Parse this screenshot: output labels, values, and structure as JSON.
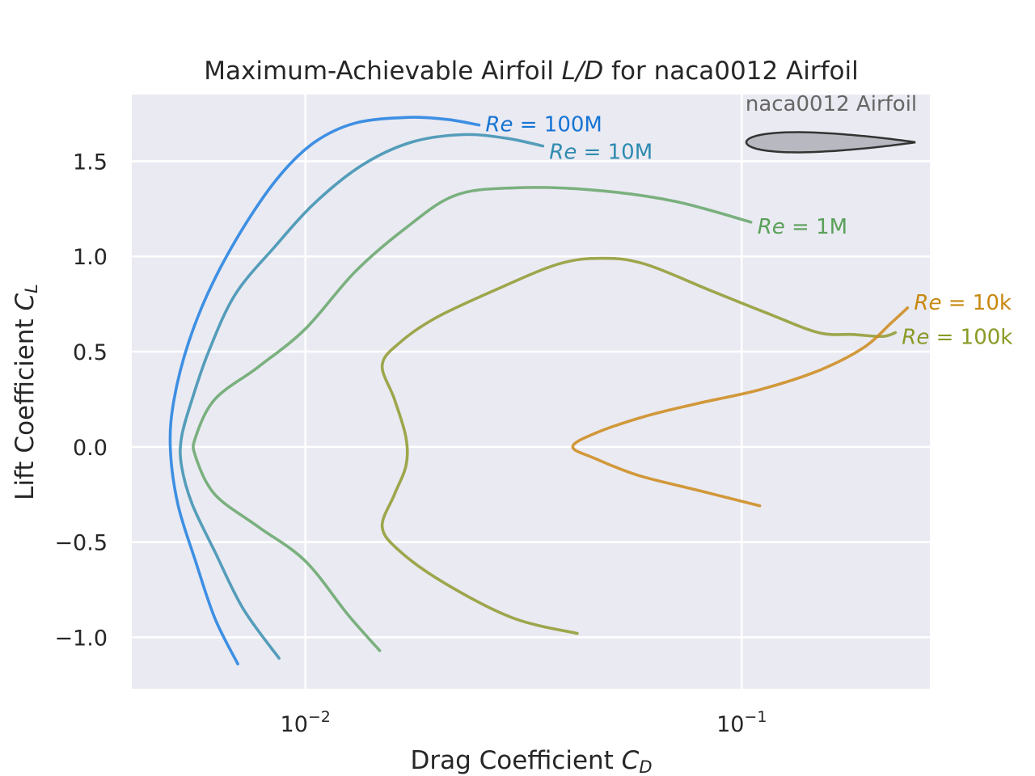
{
  "chart_data": {
    "type": "line",
    "title_parts": [
      "Maximum-Achievable Airfoil ",
      "L/D",
      " for naca0012 Airfoil"
    ],
    "xlabel_parts": [
      "Drag Coefficient ",
      "C",
      "D"
    ],
    "ylabel_parts": [
      "Lift Coefficient ",
      "C",
      "L"
    ],
    "x_scale": "log",
    "xlim": [
      0.004,
      0.27
    ],
    "ylim": [
      -1.27,
      1.85
    ],
    "x_ticks": [
      {
        "value": 0.01,
        "base": "10",
        "exp": "−2"
      },
      {
        "value": 0.1,
        "base": "10",
        "exp": "−1"
      }
    ],
    "y_ticks": [
      {
        "value": 1.5,
        "label": "1.5"
      },
      {
        "value": 1.0,
        "label": "1.0"
      },
      {
        "value": 0.5,
        "label": "0.5"
      },
      {
        "value": 0.0,
        "label": "0.0"
      },
      {
        "value": -0.5,
        "label": "−0.5"
      },
      {
        "value": -1.0,
        "label": "−1.0"
      }
    ],
    "grid": true,
    "inset_label": "naca0012 Airfoil",
    "series": [
      {
        "name": "Re = 100M",
        "label_prefix": "Re",
        "label_value": "100M",
        "color": "#1f7fe0",
        "label_text_color": "#1674d4",
        "label_anchor": "end",
        "points": [
          [
            0.007,
            -1.14
          ],
          [
            0.0062,
            -0.9
          ],
          [
            0.0056,
            -0.6
          ],
          [
            0.0051,
            -0.3
          ],
          [
            0.0049,
            0.0
          ],
          [
            0.005,
            0.25
          ],
          [
            0.0054,
            0.55
          ],
          [
            0.0061,
            0.85
          ],
          [
            0.0072,
            1.15
          ],
          [
            0.0087,
            1.42
          ],
          [
            0.0105,
            1.6
          ],
          [
            0.013,
            1.7
          ],
          [
            0.017,
            1.73
          ],
          [
            0.021,
            1.72
          ],
          [
            0.025,
            1.69
          ]
        ]
      },
      {
        "name": "Re = 10M",
        "label_prefix": "Re",
        "label_value": "10M",
        "color": "#3a8fb0",
        "label_text_color": "#2f8bb0",
        "label_anchor": "end",
        "points": [
          [
            0.0087,
            -1.11
          ],
          [
            0.0072,
            -0.85
          ],
          [
            0.0062,
            -0.55
          ],
          [
            0.0055,
            -0.3
          ],
          [
            0.0052,
            -0.1
          ],
          [
            0.0052,
            0.05
          ],
          [
            0.0055,
            0.25
          ],
          [
            0.006,
            0.5
          ],
          [
            0.0069,
            0.8
          ],
          [
            0.0085,
            1.05
          ],
          [
            0.0105,
            1.28
          ],
          [
            0.0135,
            1.48
          ],
          [
            0.0175,
            1.6
          ],
          [
            0.023,
            1.64
          ],
          [
            0.029,
            1.62
          ],
          [
            0.035,
            1.58
          ]
        ]
      },
      {
        "name": "Re = 1M",
        "label_prefix": "Re",
        "label_value": "1M",
        "color": "#66a66a",
        "label_text_color": "#5aa05a",
        "label_anchor": "end",
        "points": [
          [
            0.0148,
            -1.07
          ],
          [
            0.0125,
            -0.88
          ],
          [
            0.01,
            -0.6
          ],
          [
            0.0078,
            -0.42
          ],
          [
            0.0062,
            -0.25
          ],
          [
            0.0056,
            -0.05
          ],
          [
            0.0056,
            0.05
          ],
          [
            0.0062,
            0.25
          ],
          [
            0.0078,
            0.42
          ],
          [
            0.01,
            0.62
          ],
          [
            0.013,
            0.92
          ],
          [
            0.017,
            1.15
          ],
          [
            0.022,
            1.32
          ],
          [
            0.03,
            1.36
          ],
          [
            0.045,
            1.35
          ],
          [
            0.07,
            1.29
          ],
          [
            0.105,
            1.18
          ]
        ]
      },
      {
        "name": "Re = 100k",
        "label_prefix": "Re",
        "label_value": "100k",
        "color": "#8f9a2e",
        "label_text_color": "#8a9a25",
        "label_anchor": "end",
        "points": [
          [
            0.042,
            -0.98
          ],
          [
            0.03,
            -0.9
          ],
          [
            0.021,
            -0.72
          ],
          [
            0.0165,
            -0.55
          ],
          [
            0.015,
            -0.42
          ],
          [
            0.016,
            -0.25
          ],
          [
            0.017,
            -0.1
          ],
          [
            0.017,
            0.05
          ],
          [
            0.016,
            0.25
          ],
          [
            0.015,
            0.43
          ],
          [
            0.0165,
            0.55
          ],
          [
            0.02,
            0.68
          ],
          [
            0.027,
            0.82
          ],
          [
            0.038,
            0.96
          ],
          [
            0.048,
            0.99
          ],
          [
            0.06,
            0.96
          ],
          [
            0.085,
            0.82
          ],
          [
            0.115,
            0.7
          ],
          [
            0.15,
            0.6
          ],
          [
            0.18,
            0.59
          ],
          [
            0.21,
            0.58
          ],
          [
            0.225,
            0.6
          ]
        ]
      },
      {
        "name": "Re = 10k",
        "label_prefix": "Re",
        "label_value": "10k",
        "color": "#cc8a1a",
        "label_text_color": "#c8880f",
        "label_anchor": "end",
        "points": [
          [
            0.11,
            -0.31
          ],
          [
            0.08,
            -0.23
          ],
          [
            0.058,
            -0.15
          ],
          [
            0.046,
            -0.06
          ],
          [
            0.041,
            0.0
          ],
          [
            0.046,
            0.07
          ],
          [
            0.06,
            0.16
          ],
          [
            0.08,
            0.23
          ],
          [
            0.11,
            0.3
          ],
          [
            0.15,
            0.4
          ],
          [
            0.19,
            0.52
          ],
          [
            0.22,
            0.65
          ],
          [
            0.24,
            0.73
          ]
        ]
      }
    ]
  }
}
